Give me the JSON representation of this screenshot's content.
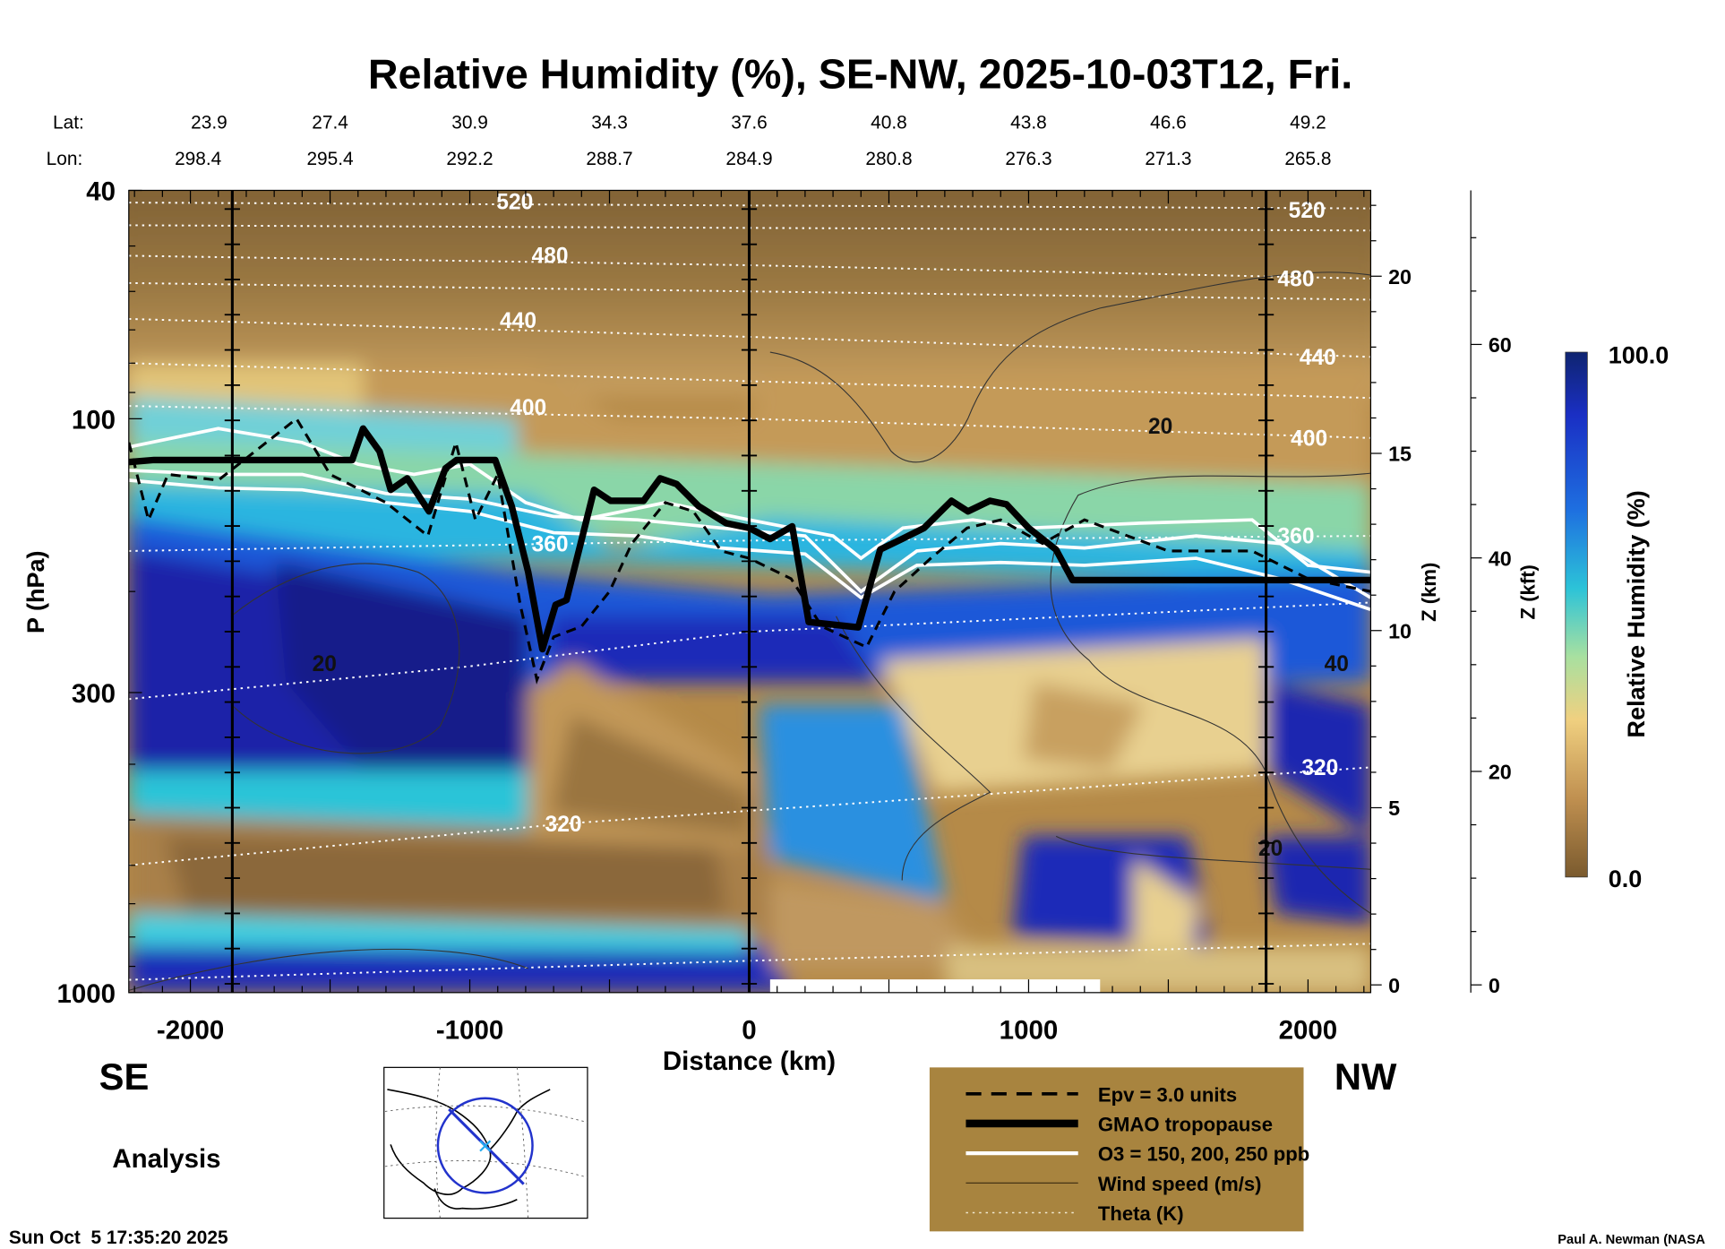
{
  "chart_data": {
    "type": "heatmap",
    "title": "Relative Humidity (%), SE-NW, 2025-10-03T12, Fri.",
    "xlabel": "Distance (km)",
    "ylabel": "P (hPa)",
    "y2label": "Z (km)",
    "y3label": "Z (kft)",
    "xlim": [
      -2220,
      2224
    ],
    "ylim": [
      1000,
      40
    ],
    "yscale": "log",
    "x_ticks": [
      -2000,
      -1000,
      0,
      1000,
      2000
    ],
    "x_tick_labels": [
      "-2000",
      "-1000",
      "0",
      "1000",
      "2000"
    ],
    "y_ticks": [
      40,
      100,
      300,
      1000
    ],
    "y_tick_labels": [
      "40",
      "100",
      "300",
      "1000"
    ],
    "zkm_ticks": [
      {
        "label": "20",
        "km": 20
      },
      {
        "label": "15",
        "km": 15
      },
      {
        "label": "10",
        "km": 10
      },
      {
        "label": "5",
        "km": 5
      },
      {
        "label": "0",
        "km": 0
      }
    ],
    "zkft_ticks": [
      {
        "label": "60",
        "kft": 60
      },
      {
        "label": "40",
        "kft": 40
      },
      {
        "label": "20",
        "kft": 20
      },
      {
        "label": "0",
        "kft": 0
      }
    ],
    "lat_label": "Lat:",
    "lon_label": "Lon:",
    "lat": [
      "23.9",
      "27.4",
      "30.9",
      "34.3",
      "37.6",
      "40.8",
      "43.8",
      "46.6",
      "49.2"
    ],
    "lon": [
      "298.4",
      "295.4",
      "292.2",
      "288.7",
      "284.9",
      "280.8",
      "276.3",
      "271.3",
      "265.8"
    ],
    "latlon_distances": [
      -2000,
      -1500,
      -1000,
      -500,
      0,
      500,
      1000,
      1500,
      2000
    ],
    "vertical_markers_km": [
      -1850,
      0,
      1850
    ],
    "colorbar": {
      "label": "Relative Humidity (%)",
      "max_label": "100.0",
      "min_label": "0.0",
      "range": [
        0,
        100
      ]
    },
    "tropopause": [
      [
        -2220,
        119
      ],
      [
        -2130,
        118
      ],
      [
        -1421,
        118
      ],
      [
        -1382,
        104
      ],
      [
        -1323,
        114
      ],
      [
        -1283,
        133
      ],
      [
        -1224,
        127
      ],
      [
        -1146,
        145
      ],
      [
        -1087,
        122
      ],
      [
        -1047,
        118
      ],
      [
        -909,
        118
      ],
      [
        -850,
        142
      ],
      [
        -791,
        185
      ],
      [
        -740,
        252
      ],
      [
        -693,
        211
      ],
      [
        -654,
        207
      ],
      [
        -555,
        133
      ],
      [
        -496,
        139
      ],
      [
        -378,
        139
      ],
      [
        -319,
        127
      ],
      [
        -260,
        130
      ],
      [
        -181,
        142
      ],
      [
        -83,
        152
      ],
      [
        0,
        155
      ],
      [
        75,
        162
      ],
      [
        154,
        154
      ],
      [
        213,
        226
      ],
      [
        390,
        231
      ],
      [
        469,
        169
      ],
      [
        547,
        162
      ],
      [
        626,
        155
      ],
      [
        724,
        139
      ],
      [
        783,
        145
      ],
      [
        862,
        139
      ],
      [
        921,
        141
      ],
      [
        1000,
        155
      ],
      [
        1098,
        169
      ],
      [
        1157,
        191
      ],
      [
        2224,
        191
      ]
    ],
    "epv": [
      [
        -2220,
        110
      ],
      [
        -2150,
        150
      ],
      [
        -2080,
        125
      ],
      [
        -1900,
        128
      ],
      [
        -1620,
        100
      ],
      [
        -1500,
        125
      ],
      [
        -1300,
        140
      ],
      [
        -1150,
        160
      ],
      [
        -1050,
        110
      ],
      [
        -980,
        150
      ],
      [
        -900,
        125
      ],
      [
        -820,
        210
      ],
      [
        -760,
        285
      ],
      [
        -700,
        240
      ],
      [
        -600,
        230
      ],
      [
        -500,
        200
      ],
      [
        -420,
        165
      ],
      [
        -300,
        140
      ],
      [
        -200,
        145
      ],
      [
        -100,
        170
      ],
      [
        0,
        175
      ],
      [
        150,
        190
      ],
      [
        260,
        230
      ],
      [
        420,
        250
      ],
      [
        520,
        200
      ],
      [
        650,
        175
      ],
      [
        780,
        155
      ],
      [
        900,
        150
      ],
      [
        1050,
        165
      ],
      [
        1200,
        150
      ],
      [
        1500,
        170
      ],
      [
        1800,
        170
      ],
      [
        2000,
        190
      ],
      [
        2224,
        200
      ]
    ],
    "o3_contours": [
      {
        "ppb": 150,
        "points": [
          [
            -2220,
            112
          ],
          [
            -1900,
            104
          ],
          [
            -1600,
            110
          ],
          [
            -1400,
            120
          ],
          [
            -1200,
            125
          ],
          [
            -1000,
            120
          ],
          [
            -800,
            140
          ],
          [
            -600,
            150
          ],
          [
            -300,
            140
          ],
          [
            0,
            150
          ],
          [
            300,
            160
          ],
          [
            400,
            175
          ],
          [
            550,
            155
          ],
          [
            800,
            150
          ],
          [
            1000,
            155
          ],
          [
            1400,
            152
          ],
          [
            1800,
            150
          ],
          [
            2000,
            180
          ],
          [
            2224,
            185
          ]
        ]
      },
      {
        "ppb": 200,
        "points": [
          [
            -2220,
            123
          ],
          [
            -1900,
            125
          ],
          [
            -1600,
            125
          ],
          [
            -1300,
            135
          ],
          [
            -1000,
            138
          ],
          [
            -700,
            148
          ],
          [
            -400,
            150
          ],
          [
            -100,
            155
          ],
          [
            200,
            160
          ],
          [
            400,
            200
          ],
          [
            600,
            170
          ],
          [
            900,
            165
          ],
          [
            1200,
            168
          ],
          [
            1600,
            160
          ],
          [
            1900,
            165
          ],
          [
            2224,
            205
          ]
        ]
      },
      {
        "ppb": 250,
        "points": [
          [
            -2220,
            128
          ],
          [
            -1900,
            132
          ],
          [
            -1600,
            133
          ],
          [
            -1300,
            140
          ],
          [
            -1000,
            145
          ],
          [
            -700,
            158
          ],
          [
            -400,
            160
          ],
          [
            -100,
            168
          ],
          [
            200,
            172
          ],
          [
            400,
            205
          ],
          [
            600,
            180
          ],
          [
            900,
            178
          ],
          [
            1200,
            180
          ],
          [
            1600,
            175
          ],
          [
            1900,
            190
          ],
          [
            2224,
            215
          ]
        ]
      }
    ],
    "theta_contours": [
      {
        "theta": 520,
        "label": "520",
        "points": [
          [
            -2220,
            42
          ],
          [
            0,
            42.5
          ],
          [
            2224,
            43
          ]
        ],
        "label_at": [
          -839,
          41.8
        ]
      },
      {
        "theta": 500,
        "label": "",
        "points": [
          [
            -2220,
            46
          ],
          [
            0,
            46.5
          ],
          [
            2224,
            47
          ]
        ]
      },
      {
        "theta": 480,
        "label": "480",
        "points": [
          [
            -2220,
            52
          ],
          [
            0,
            54
          ],
          [
            2224,
            57
          ]
        ],
        "label_at": [
          -713,
          51.9
        ]
      },
      {
        "theta": 460,
        "label": "",
        "points": [
          [
            -2220,
            58
          ],
          [
            0,
            60
          ],
          [
            2224,
            62
          ]
        ]
      },
      {
        "theta": 440,
        "label": "440",
        "points": [
          [
            -2220,
            67
          ],
          [
            0,
            72
          ],
          [
            2224,
            78
          ]
        ],
        "label_at": [
          -827,
          67.4
        ]
      },
      {
        "theta": 420,
        "label": "",
        "points": [
          [
            -2220,
            80
          ],
          [
            0,
            86
          ],
          [
            2224,
            92
          ]
        ]
      },
      {
        "theta": 400,
        "label": "400",
        "points": [
          [
            -2220,
            95
          ],
          [
            0,
            100
          ],
          [
            2224,
            108
          ]
        ],
        "label_at": [
          -791,
          95.4
        ]
      },
      {
        "theta": 360,
        "label": "360",
        "points": [
          [
            -2220,
            170
          ],
          [
            0,
            163
          ],
          [
            2224,
            160
          ]
        ],
        "label_at": [
          -713,
          165
        ]
      },
      {
        "theta": 340,
        "label": "",
        "points": [
          [
            -2220,
            308
          ],
          [
            -1000,
            270
          ],
          [
            0,
            235
          ],
          [
            2224,
            209
          ]
        ]
      },
      {
        "theta": 320,
        "label": "320",
        "points": [
          [
            -2220,
            600
          ],
          [
            -665,
            508
          ],
          [
            2224,
            405
          ]
        ],
        "label_at": [
          -665,
          508
        ]
      },
      {
        "theta": 300,
        "label": "",
        "points": [
          [
            -2220,
            950
          ],
          [
            0,
            880
          ],
          [
            2224,
            822
          ]
        ]
      }
    ],
    "theta_right_labels": [
      {
        "label": "520",
        "at": [
          1996,
          43.3
        ]
      },
      {
        "label": "480",
        "at": [
          1957,
          57
        ]
      },
      {
        "label": "440",
        "at": [
          2035,
          78
        ]
      },
      {
        "label": "400",
        "at": [
          2004,
          108
        ]
      },
      {
        "label": "360",
        "at": [
          1957,
          160
        ]
      },
      {
        "label": "320",
        "at": [
          2043,
          405
        ]
      }
    ],
    "wind_labels": [
      {
        "label": "20",
        "at": [
          1472,
          103
        ]
      },
      {
        "label": "20",
        "at": [
          -1520,
          267
        ]
      },
      {
        "label": "40",
        "at": [
          2102,
          267
        ]
      },
      {
        "label": "20",
        "at": [
          1866,
          560
        ]
      }
    ],
    "legend": [
      {
        "label": "Epv = 3.0 units",
        "style": "dashed"
      },
      {
        "label": "GMAO tropopause",
        "style": "thick"
      },
      {
        "label": "O3 = 150, 200, 250 ppb",
        "style": "white"
      },
      {
        "label": "Wind speed (m/s)",
        "style": "thin"
      },
      {
        "label": "Theta (K)",
        "style": "dotted"
      }
    ],
    "legend_placement": "bottom-right"
  },
  "labels": {
    "se": "SE",
    "nw": "NW",
    "analysis": "Analysis",
    "timestamp": "Sun Oct  5 17:35:20 2025",
    "credit": "Paul A. Newman (NASA"
  },
  "colors": {
    "legend_bg": "#a8843f",
    "tropopause": "#000000",
    "o3": "#ffffff",
    "bar_top": "#102a7a",
    "bar_bottom": "#7a5a2e"
  }
}
